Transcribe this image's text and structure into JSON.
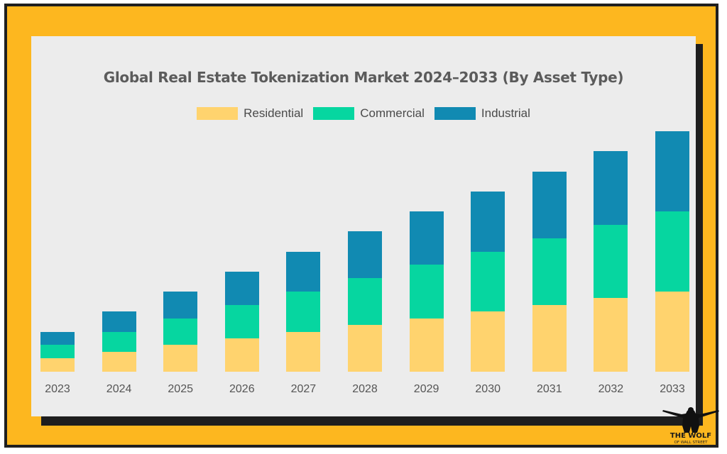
{
  "chart_data": {
    "type": "stacked-bar",
    "title": "Global Real Estate Tokenization Market 2024–2033 (By Asset Type)",
    "categories": [
      "2023",
      "2024",
      "2025",
      "2026",
      "2027",
      "2028",
      "2029",
      "2030",
      "2031",
      "2032",
      "2033"
    ],
    "series": [
      {
        "name": "Residential",
        "color": "#FFD36E",
        "values": [
          20,
          30,
          40,
          50,
          60,
          70,
          80,
          90,
          100,
          110,
          120
        ]
      },
      {
        "name": "Commercial",
        "color": "#06D6A0",
        "values": [
          20,
          30,
          40,
          50,
          60,
          70,
          80,
          90,
          100,
          110,
          120
        ]
      },
      {
        "name": "Industrial",
        "color": "#118AB2",
        "values": [
          20,
          30,
          40,
          50,
          60,
          70,
          80,
          90,
          100,
          110,
          120
        ]
      }
    ],
    "xlabel": "",
    "ylabel": "",
    "ylim": [
      0,
      360
    ],
    "grid": false,
    "legend": "top-center"
  },
  "logo": {
    "line1": "THE WOLF",
    "line2": "OF WALL STREET"
  }
}
